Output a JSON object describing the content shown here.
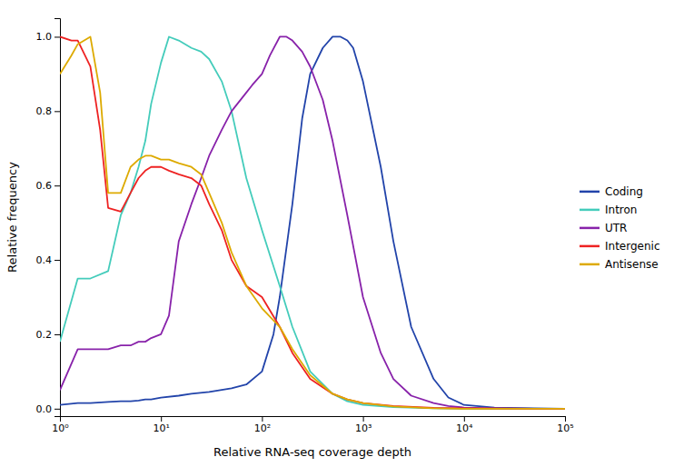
{
  "chart_data": {
    "type": "line",
    "xlabel": "Relative RNA-seq coverage depth",
    "ylabel": "Relative frequency",
    "log": "x",
    "xlim": [
      1,
      100000
    ],
    "xticks": [
      {
        "value": 1,
        "label": "10⁰"
      },
      {
        "value": 10,
        "label": "10¹"
      },
      {
        "value": 100,
        "label": "10²"
      },
      {
        "value": 1000,
        "label": "10³"
      },
      {
        "value": 10000,
        "label": "10⁴"
      },
      {
        "value": 100000,
        "label": "10⁵"
      }
    ],
    "ylim": [
      -0.02,
      1.05
    ],
    "yticks": [
      {
        "value": 0,
        "label": "0.0"
      },
      0.2,
      0.4,
      0.6,
      0.8,
      {
        "value": 1,
        "label": "1.0"
      }
    ],
    "grid": false,
    "legend": "right",
    "series": [
      {
        "name": "Coding",
        "color": "#2244aa",
        "x": [
          1,
          1.5,
          2,
          3,
          4,
          5,
          6,
          7,
          8,
          10,
          15,
          20,
          30,
          50,
          70,
          100,
          130,
          150,
          200,
          250,
          300,
          400,
          500,
          600,
          700,
          800,
          1000,
          1500,
          2000,
          3000,
          5000,
          7000,
          10000,
          20000,
          50000,
          100000
        ],
        "values": [
          0.01,
          0.015,
          0.015,
          0.018,
          0.02,
          0.02,
          0.022,
          0.025,
          0.025,
          0.03,
          0.035,
          0.04,
          0.045,
          0.055,
          0.065,
          0.1,
          0.2,
          0.3,
          0.55,
          0.78,
          0.9,
          0.97,
          1.0,
          1.0,
          0.99,
          0.97,
          0.88,
          0.65,
          0.45,
          0.22,
          0.08,
          0.03,
          0.01,
          0.003,
          0.001,
          0.0
        ]
      },
      {
        "name": "Intron",
        "color": "#44ccbb",
        "x": [
          1,
          1.5,
          2,
          3,
          4,
          5,
          6,
          7,
          8,
          10,
          12,
          15,
          20,
          25,
          30,
          40,
          50,
          70,
          100,
          150,
          200,
          300,
          500,
          700,
          1000,
          2000,
          5000,
          10000,
          50000,
          100000
        ],
        "values": [
          0.18,
          0.35,
          0.35,
          0.37,
          0.52,
          0.58,
          0.65,
          0.72,
          0.82,
          0.93,
          1.0,
          0.99,
          0.97,
          0.96,
          0.94,
          0.88,
          0.8,
          0.62,
          0.48,
          0.33,
          0.22,
          0.1,
          0.04,
          0.02,
          0.01,
          0.004,
          0.001,
          0.0,
          0.0,
          0.0
        ]
      },
      {
        "name": "UTR",
        "color": "#8822aa",
        "x": [
          1,
          1.5,
          2,
          3,
          4,
          5,
          6,
          7,
          8,
          10,
          12,
          15,
          20,
          25,
          30,
          40,
          50,
          70,
          80,
          100,
          120,
          150,
          175,
          200,
          250,
          300,
          400,
          500,
          700,
          1000,
          1500,
          2000,
          3000,
          5000,
          7000,
          10000,
          20000,
          50000,
          100000
        ],
        "values": [
          0.05,
          0.16,
          0.16,
          0.16,
          0.17,
          0.17,
          0.18,
          0.18,
          0.19,
          0.2,
          0.25,
          0.45,
          0.55,
          0.62,
          0.68,
          0.75,
          0.8,
          0.85,
          0.87,
          0.9,
          0.95,
          1.0,
          1.0,
          0.99,
          0.96,
          0.92,
          0.83,
          0.72,
          0.52,
          0.3,
          0.15,
          0.08,
          0.035,
          0.015,
          0.007,
          0.003,
          0.001,
          0.0,
          0.0
        ]
      },
      {
        "name": "Intergenic",
        "color": "#ee2222",
        "x": [
          1,
          1.3,
          1.5,
          2,
          2.5,
          3,
          4,
          5,
          6,
          7,
          8,
          10,
          12,
          15,
          20,
          25,
          30,
          40,
          50,
          70,
          100,
          150,
          200,
          300,
          500,
          700,
          1000,
          2000,
          5000,
          10000,
          50000,
          100000
        ],
        "values": [
          1.0,
          0.99,
          0.99,
          0.92,
          0.75,
          0.54,
          0.53,
          0.58,
          0.62,
          0.64,
          0.65,
          0.65,
          0.64,
          0.63,
          0.62,
          0.6,
          0.55,
          0.48,
          0.4,
          0.33,
          0.3,
          0.22,
          0.15,
          0.08,
          0.04,
          0.025,
          0.015,
          0.007,
          0.002,
          0.001,
          0.0,
          0.0
        ]
      },
      {
        "name": "Antisense",
        "color": "#ddaa00",
        "x": [
          1,
          1.3,
          1.5,
          2,
          2.5,
          3,
          4,
          5,
          6,
          7,
          8,
          10,
          12,
          15,
          20,
          25,
          30,
          40,
          50,
          70,
          100,
          150,
          200,
          300,
          500,
          700,
          1000,
          2000,
          5000,
          10000,
          50000,
          100000
        ],
        "values": [
          0.9,
          0.95,
          0.98,
          1.0,
          0.85,
          0.58,
          0.58,
          0.65,
          0.67,
          0.68,
          0.68,
          0.67,
          0.67,
          0.66,
          0.65,
          0.63,
          0.58,
          0.5,
          0.42,
          0.33,
          0.27,
          0.22,
          0.16,
          0.09,
          0.04,
          0.025,
          0.015,
          0.006,
          0.001,
          0.0,
          0.0,
          0.0
        ]
      }
    ]
  }
}
